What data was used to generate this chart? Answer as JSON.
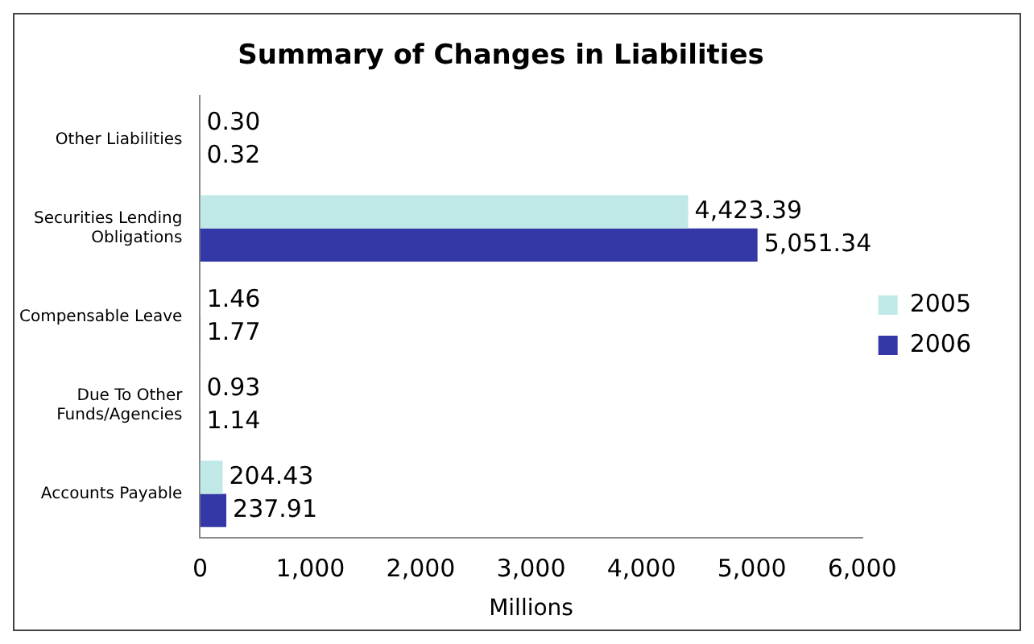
{
  "chart_data": {
    "type": "bar",
    "orientation": "horizontal",
    "title": "Summary of Changes in Liabilities",
    "xlabel": "Millions",
    "categories": [
      "Other Liabilities",
      "Securities Lending Obligations",
      "Compensable Leave",
      "Due To Other Funds/Agencies",
      "Accounts Payable"
    ],
    "series": [
      {
        "name": "2005",
        "color": "#bfe8e6",
        "values": [
          0.3,
          4423.39,
          1.46,
          0.93,
          204.43
        ],
        "value_labels": [
          "0.30",
          "4,423.39",
          "1.46",
          "0.93",
          "204.43"
        ]
      },
      {
        "name": "2006",
        "color": "#3338a6",
        "values": [
          0.32,
          5051.34,
          1.77,
          1.14,
          237.91
        ],
        "value_labels": [
          "0.32",
          "5,051.34",
          "1.77",
          "1.14",
          "237.91"
        ]
      }
    ],
    "xlim": [
      0,
      6000
    ],
    "xticks": [
      0,
      {
        "value": 1000,
        "label": "1,000"
      },
      {
        "value": 2000,
        "label": "2,000"
      },
      {
        "value": 3000,
        "label": "3,000"
      },
      {
        "value": 4000,
        "label": "4,000"
      },
      {
        "value": 5000,
        "label": "5,000"
      },
      {
        "value": 6000,
        "label": "6,000"
      }
    ],
    "grid": false,
    "legend": "right"
  }
}
